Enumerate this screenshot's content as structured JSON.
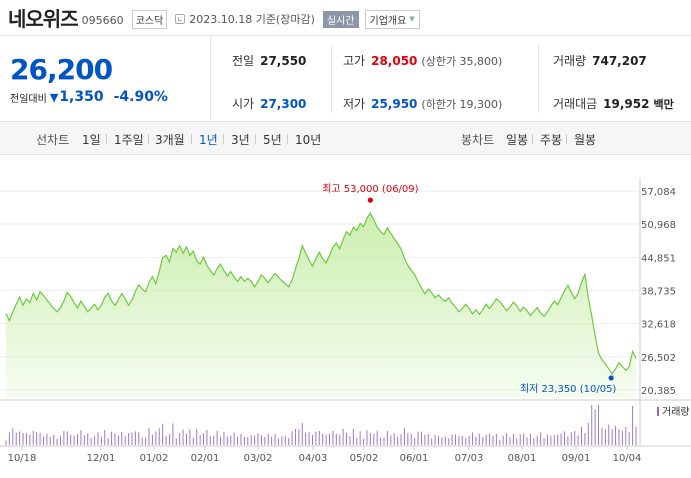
{
  "header": {
    "company_name": "네오위즈",
    "stock_code": "095660",
    "market": "코스닥",
    "date_info": "2023.10.18 기준(장마감)",
    "realtime_label": "실시간",
    "company_info_label": "기업개요"
  },
  "price": {
    "current": "26,200",
    "change_label": "전일대비",
    "change": "1,350",
    "change_pct": "-4.90%"
  },
  "stats": {
    "prev_close_label": "전일",
    "prev_close": "27,550",
    "high_label": "고가",
    "high": "28,050",
    "upper_limit": "(상한가 35,800)",
    "volume_label": "거래량",
    "volume": "747,207",
    "open_label": "시가",
    "open": "27,300",
    "low_label": "저가",
    "low": "25,950",
    "lower_limit": "(하한가 19,300)",
    "value_label": "거래대금",
    "value": "19,952",
    "value_unit": "백만"
  },
  "period_bar": {
    "line_chart_label": "선차트",
    "line_tabs": [
      "1일",
      "1주일",
      "3개월",
      "1년",
      "3년",
      "5년",
      "10년"
    ],
    "active_tab": "1년",
    "candle_chart_label": "봉차트",
    "candle_tabs": [
      "일봉",
      "주봉",
      "월봉"
    ]
  },
  "colors": {
    "up": "#e0000e",
    "down": "#0054c8",
    "line": "#6dc93f",
    "fill": "#c8eeaa"
  },
  "chart_data": {
    "type": "area",
    "y_ticks": [
      "57,084",
      "50,968",
      "44,851",
      "38,735",
      "32,618",
      "26,502",
      "20,385"
    ],
    "ylim": [
      20385,
      57084
    ],
    "x_ticks": [
      "10/18",
      "12/01",
      "01/02",
      "02/01",
      "03/02",
      "04/03",
      "05/02",
      "06/01",
      "07/03",
      "08/01",
      "09/01",
      "10/04"
    ],
    "high_label": "최고 53,000 (06/09)",
    "low_label": "최저 23,350 (10/05)",
    "volume_legend": "거래량",
    "values": [
      34500,
      33200,
      34800,
      36200,
      37500,
      36000,
      37200,
      36500,
      38200,
      37000,
      38500,
      37800,
      37000,
      36200,
      35400,
      34800,
      35600,
      36800,
      38400,
      37600,
      36500,
      35500,
      36800,
      35800,
      34800,
      35500,
      36200,
      35200,
      36000,
      37500,
      38200,
      36800,
      36000,
      37000,
      38200,
      37200,
      36000,
      37000,
      38600,
      39800,
      39000,
      38500,
      40200,
      41300,
      40000,
      42200,
      44800,
      45200,
      44000,
      46500,
      45800,
      47000,
      45600,
      46800,
      45200,
      46000,
      44200,
      43600,
      44900,
      43400,
      42400,
      41600,
      42800,
      43600,
      42400,
      41400,
      42200,
      41200,
      40400,
      41300,
      40400,
      41000,
      40400,
      39400,
      40400,
      41600,
      41000,
      40200,
      41000,
      41900,
      41200,
      40500,
      40000,
      39400,
      40700,
      42800,
      44600,
      47000,
      45600,
      44400,
      43200,
      44600,
      45800,
      44600,
      43800,
      45200,
      46700,
      47500,
      46400,
      48100,
      49600,
      48900,
      50400,
      49800,
      51100,
      50500,
      52100,
      53000,
      51800,
      50400,
      49600,
      49100,
      50300,
      49300,
      48300,
      47400,
      46400,
      44700,
      43400,
      42500,
      41700,
      40300,
      39200,
      38100,
      39000,
      38300,
      37400,
      37900,
      37200,
      36700,
      37400,
      36400,
      35700,
      34800,
      35400,
      36200,
      35400,
      34400,
      35200,
      34300,
      35200,
      36200,
      35400,
      36300,
      37200,
      36700,
      35900,
      35000,
      35700,
      36600,
      35900,
      34900,
      35700,
      35000,
      34100,
      34800,
      35600,
      34600,
      34000,
      34800,
      35900,
      36800,
      36100,
      37400,
      38700,
      39700,
      38400,
      37200,
      38200,
      40200,
      41700,
      37400,
      34100,
      30400,
      27200,
      26000,
      25200,
      24300,
      23350,
      24300,
      25400,
      24700,
      24000,
      24700,
      27500,
      26200
    ]
  }
}
